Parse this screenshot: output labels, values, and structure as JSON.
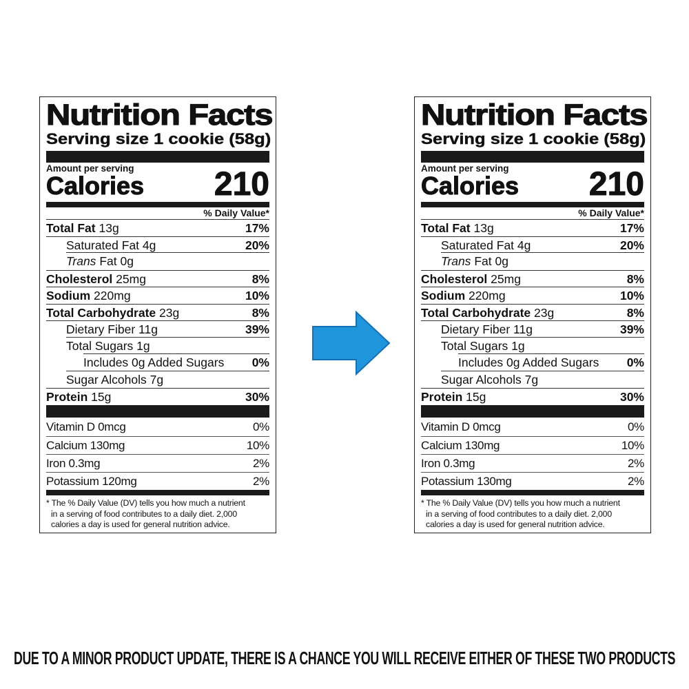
{
  "labels": [
    {
      "title": "Nutrition Facts",
      "serving_size": "Serving size 1 cookie (58g)",
      "amount_per_serving": "Amount per serving",
      "calories_label": "Calories",
      "calories_value": "210",
      "daily_value_header": "% Daily Value*",
      "nutrients": [
        {
          "name": "Total Fat",
          "amount": "13g",
          "dv": "17%",
          "bold": true,
          "indent": 0
        },
        {
          "name": "Saturated Fat",
          "amount": "4g",
          "dv": "20%",
          "bold": false,
          "indent": 1
        },
        {
          "name": "Trans",
          "name_suffix": "Fat",
          "amount": "0g",
          "dv": "",
          "bold": false,
          "indent": 1,
          "italic": true
        },
        {
          "name": "Cholesterol",
          "amount": "25mg",
          "dv": "8%",
          "bold": true,
          "indent": 0
        },
        {
          "name": "Sodium",
          "amount": "220mg",
          "dv": "10%",
          "bold": true,
          "indent": 0
        },
        {
          "name": "Total Carbohydrate",
          "amount": "23g",
          "dv": "8%",
          "bold": true,
          "indent": 0
        },
        {
          "name": "Dietary Fiber",
          "amount": "11g",
          "dv": "39%",
          "bold": false,
          "indent": 1
        },
        {
          "name": "Total Sugars",
          "amount": "1g",
          "dv": "",
          "bold": false,
          "indent": 1
        },
        {
          "name": "Includes 0g Added Sugars",
          "amount": "",
          "dv": "0%",
          "bold": false,
          "indent": 2
        },
        {
          "name": "Sugar Alcohols",
          "amount": "7g",
          "dv": "",
          "bold": false,
          "indent": 1
        },
        {
          "name": "Protein",
          "amount": "15g",
          "dv": "30%",
          "bold": true,
          "indent": 0
        }
      ],
      "vitamins": [
        {
          "name": "Vitamin D 0mcg",
          "dv": "0%"
        },
        {
          "name": "Calcium 130mg",
          "dv": "10%"
        },
        {
          "name": "Iron 0.3mg",
          "dv": "2%"
        },
        {
          "name": "Potassium 120mg",
          "dv": "2%"
        }
      ],
      "footnote": [
        "* The % Daily Value (DV) tells you how much a nutrient",
        "in a serving of food contributes to a daily diet. 2,000",
        "calories a day is used for general nutrition advice."
      ]
    },
    {
      "title": "Nutrition Facts",
      "serving_size": "Serving size 1 cookie (58g)",
      "amount_per_serving": "Amount per serving",
      "calories_label": "Calories",
      "calories_value": "210",
      "daily_value_header": "% Daily Value*",
      "nutrients": [
        {
          "name": "Total Fat",
          "amount": "13g",
          "dv": "17%",
          "bold": true,
          "indent": 0
        },
        {
          "name": "Saturated Fat",
          "amount": "4g",
          "dv": "20%",
          "bold": false,
          "indent": 1
        },
        {
          "name": "Trans",
          "name_suffix": "Fat",
          "amount": "0g",
          "dv": "",
          "bold": false,
          "indent": 1,
          "italic": true
        },
        {
          "name": "Cholesterol",
          "amount": "25mg",
          "dv": "8%",
          "bold": true,
          "indent": 0
        },
        {
          "name": "Sodium",
          "amount": "220mg",
          "dv": "10%",
          "bold": true,
          "indent": 0
        },
        {
          "name": "Total Carbohydrate",
          "amount": "23g",
          "dv": "8%",
          "bold": true,
          "indent": 0
        },
        {
          "name": "Dietary Fiber",
          "amount": "11g",
          "dv": "39%",
          "bold": false,
          "indent": 1
        },
        {
          "name": "Total Sugars",
          "amount": "1g",
          "dv": "",
          "bold": false,
          "indent": 1
        },
        {
          "name": "Includes 0g Added Sugars",
          "amount": "",
          "dv": "0%",
          "bold": false,
          "indent": 2
        },
        {
          "name": "Sugar Alcohols",
          "amount": "7g",
          "dv": "",
          "bold": false,
          "indent": 1
        },
        {
          "name": "Protein",
          "amount": "15g",
          "dv": "30%",
          "bold": true,
          "indent": 0
        }
      ],
      "vitamins": [
        {
          "name": "Vitamin D 0mcg",
          "dv": "0%"
        },
        {
          "name": "Calcium 130mg",
          "dv": "10%"
        },
        {
          "name": "Iron 0.3mg",
          "dv": "2%"
        },
        {
          "name": "Potassium 130mg",
          "dv": "2%"
        }
      ],
      "footnote": [
        "* The % Daily Value (DV) tells you how much a nutrient",
        "in a serving of food contributes to a daily diet. 2,000",
        "calories a day is used for general nutrition advice."
      ]
    }
  ],
  "arrow": {
    "icon": "right-arrow-icon",
    "color": "#1f96dc",
    "border": "#1570b8"
  },
  "notice": "DUE TO A MINOR PRODUCT UPDATE, THERE IS A CHANCE YOU WILL RECEIVE EITHER OF THESE TWO PRODUCTS"
}
